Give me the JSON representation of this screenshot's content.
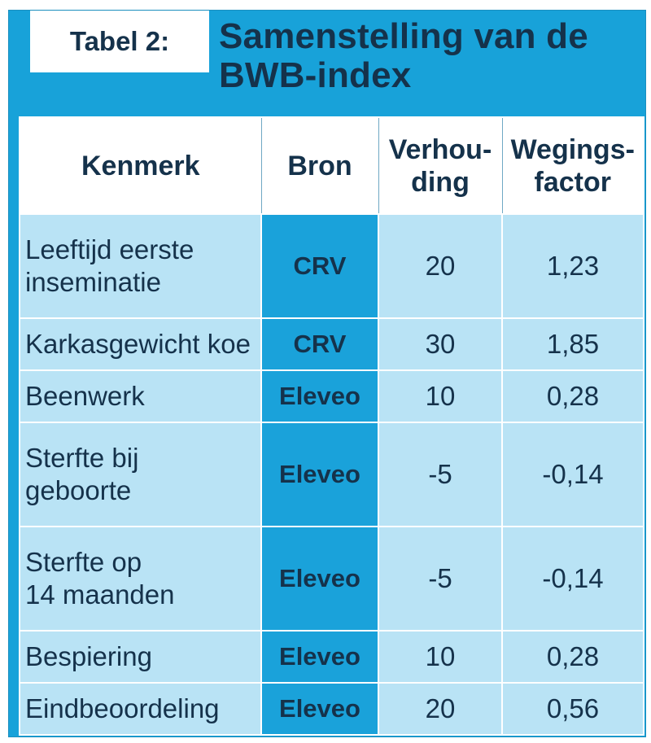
{
  "tag_label": "Tabel 2:",
  "title_line1": "Samenstelling van de",
  "title_line2": "BWB-index",
  "headers": {
    "kenmerk": "Kenmerk",
    "bron": "Bron",
    "verhouding_1": "Verhou-",
    "verhouding_2": "ding",
    "weging_1": "Wegings-",
    "weging_2": "factor"
  },
  "rows": [
    {
      "kenmerk_1": "Leeftijd eerste",
      "kenmerk_2": "inseminatie",
      "bron": "CRV",
      "verhouding": "20",
      "weging": "1,23"
    },
    {
      "kenmerk_1": "Karkasgewicht koe",
      "kenmerk_2": "",
      "bron": "CRV",
      "verhouding": "30",
      "weging": "1,85"
    },
    {
      "kenmerk_1": "Beenwerk",
      "kenmerk_2": "",
      "bron": "Eleveo",
      "verhouding": "10",
      "weging": "0,28"
    },
    {
      "kenmerk_1": "Sterfte bij",
      "kenmerk_2": "geboorte",
      "bron": "Eleveo",
      "verhouding": "-5",
      "weging": "-0,14"
    },
    {
      "kenmerk_1": "Sterfte op",
      "kenmerk_2": "14 maanden",
      "bron": "Eleveo",
      "verhouding": "-5",
      "weging": "-0,14"
    },
    {
      "kenmerk_1": "Bespiering",
      "kenmerk_2": "",
      "bron": "Eleveo",
      "verhouding": "10",
      "weging": "0,28"
    },
    {
      "kenmerk_1": "Eindbeoordeling",
      "kenmerk_2": "",
      "bron": "Eleveo",
      "verhouding": "20",
      "weging": "0,56"
    }
  ]
}
